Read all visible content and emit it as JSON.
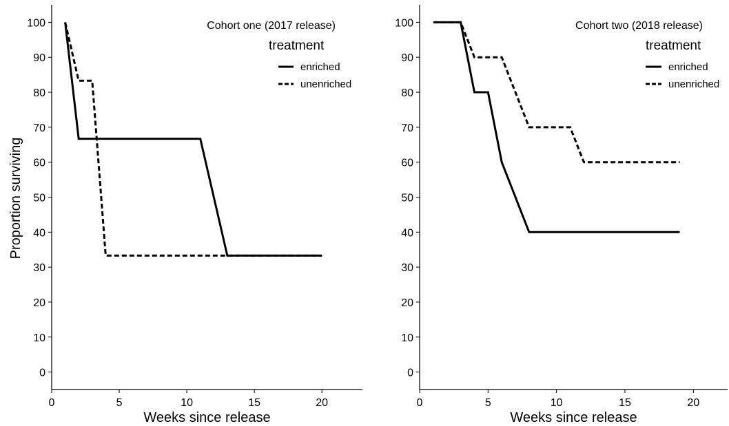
{
  "figure": {
    "ylabel": "Proportion surviving",
    "xlabel": "Weeks since release",
    "legend_title": "treatment"
  },
  "chart_data": [
    {
      "type": "line",
      "title": "Cohort one (2017 release)",
      "xlabel": "Weeks since release",
      "ylabel": "Proportion surviving",
      "xlim": [
        0,
        23
      ],
      "ylim": [
        -5,
        105
      ],
      "xticks": [
        0,
        5,
        10,
        15,
        20
      ],
      "yticks": [
        0,
        10,
        20,
        30,
        40,
        50,
        60,
        70,
        80,
        90,
        100
      ],
      "grid": false,
      "legend": {
        "title": "treatment",
        "position": "top-right"
      },
      "series": [
        {
          "name": "enriched",
          "style": "solid",
          "x": [
            1,
            2,
            11,
            13,
            20
          ],
          "y": [
            100,
            66.7,
            66.7,
            33.3,
            33.3
          ]
        },
        {
          "name": "unenriched",
          "style": "dashed",
          "x": [
            1,
            2,
            3,
            4,
            20
          ],
          "y": [
            100,
            83.3,
            83.3,
            33.3,
            33.3
          ]
        }
      ]
    },
    {
      "type": "line",
      "title": "Cohort two (2018 release)",
      "xlabel": "Weeks since release",
      "ylabel": "",
      "xlim": [
        0,
        22.5
      ],
      "ylim": [
        -5,
        105
      ],
      "xticks": [
        0,
        5,
        10,
        15,
        20
      ],
      "yticks": [
        0,
        10,
        20,
        30,
        40,
        50,
        60,
        70,
        80,
        90,
        100
      ],
      "grid": false,
      "legend": {
        "title": "treatment",
        "position": "top-right"
      },
      "series": [
        {
          "name": "enriched",
          "style": "solid",
          "x": [
            1,
            3,
            4,
            5,
            6,
            8,
            19
          ],
          "y": [
            100,
            100,
            80,
            80,
            60,
            40,
            40
          ]
        },
        {
          "name": "unenriched",
          "style": "dashed",
          "x": [
            1,
            3,
            4,
            6,
            8,
            11,
            12,
            19
          ],
          "y": [
            100,
            100,
            90,
            90,
            70,
            70,
            60,
            60
          ]
        }
      ]
    }
  ]
}
